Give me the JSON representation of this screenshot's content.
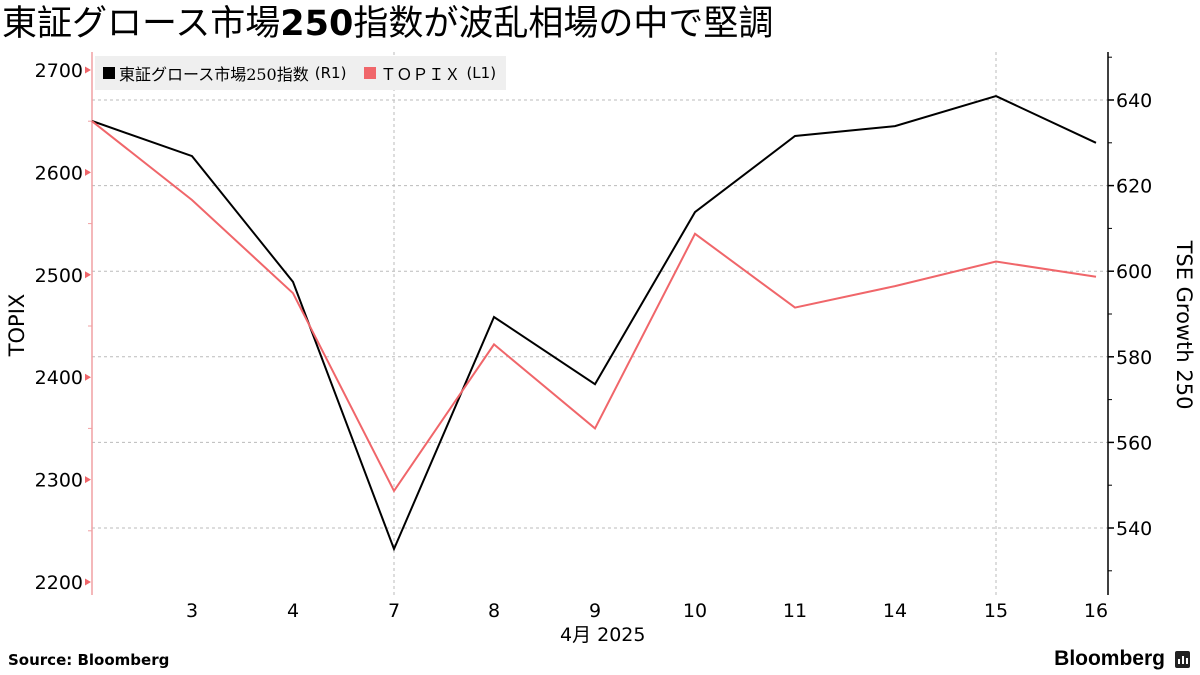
{
  "title": {
    "prefix": "東証グロース市場",
    "bold": "250",
    "suffix": "指数が波乱相場の中で堅調"
  },
  "legend": [
    {
      "label": "東証グロース市場250指数",
      "suffix": "(R1)",
      "color": "#000000"
    },
    {
      "label": "ＴＯＰＩＸ",
      "suffix": "(L1)",
      "color": "#f0666a"
    }
  ],
  "axes": {
    "left": {
      "title": "TOPIX",
      "ticks": [
        "2700",
        "2600",
        "2500",
        "2400",
        "2300",
        "2200"
      ]
    },
    "right": {
      "title": "TSE Growth 250",
      "ticks": [
        "640",
        "620",
        "600",
        "580",
        "560",
        "540"
      ]
    },
    "x": {
      "ticks": [
        "3",
        "4",
        "7",
        "8",
        "9",
        "10",
        "11",
        "14",
        "15",
        "16"
      ],
      "month_label": "4月 2025"
    }
  },
  "footer": {
    "source": "Source:  Bloomberg",
    "brand": "Bloomberg"
  },
  "chart_data": {
    "type": "line",
    "title": "東証グロース市場250指数が波乱相場の中で堅調",
    "x": [
      "2025-04-02",
      "2025-04-03",
      "2025-04-04",
      "2025-04-07",
      "2025-04-08",
      "2025-04-09",
      "2025-04-10",
      "2025-04-11",
      "2025-04-14",
      "2025-04-15",
      "2025-04-16"
    ],
    "x_tick_labels": [
      "",
      "3",
      "4",
      "7",
      "8",
      "9",
      "10",
      "11",
      "14",
      "15",
      "16"
    ],
    "xlabel": "4月 2025",
    "series": [
      {
        "name": "東証グロース市場250指数 (R1)",
        "axis": "right",
        "color": "#000000",
        "values": [
          635.1,
          626.9,
          597.5,
          535.1,
          589.3,
          573.6,
          613.8,
          631.6,
          633.9,
          640.9,
          630.0
        ]
      },
      {
        "name": "ＴＯＰＩＸ (L1)",
        "axis": "left",
        "color": "#f0666a",
        "values": [
          2650,
          2573,
          2482,
          2289,
          2432,
          2350,
          2540,
          2468,
          2489,
          2513,
          2498
        ]
      }
    ],
    "ylabel_left": "TOPIX",
    "ylim_left": [
      2190,
      2720
    ],
    "ylabel_right": "TSE Growth 250",
    "ylim_right": [
      524,
      652
    ],
    "grid": true,
    "legend_position": "top-left"
  }
}
